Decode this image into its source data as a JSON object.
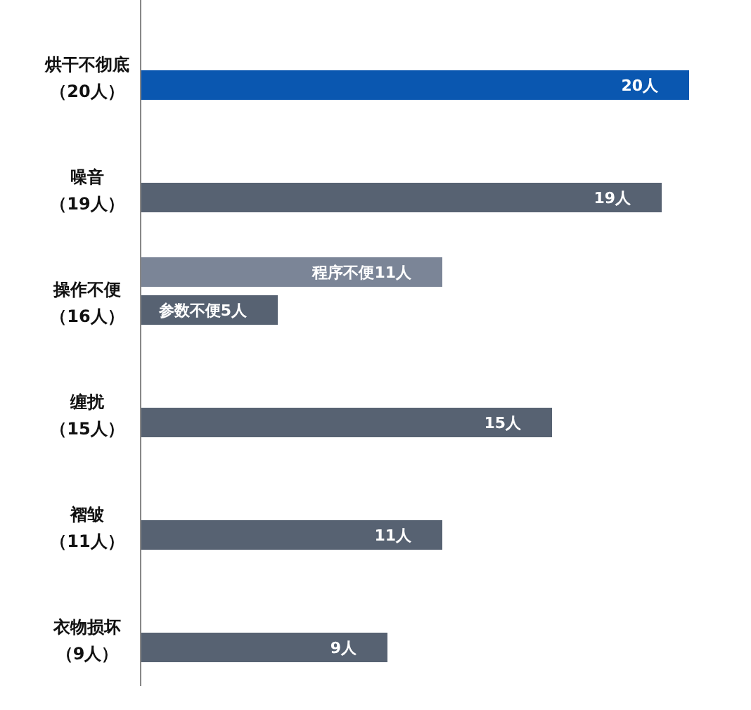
{
  "chart_data": {
    "type": "bar",
    "orientation": "horizontal",
    "categories": [
      "烘干不彻底（20人）",
      "噪音（19人）",
      "操作不便（16人）",
      "缠扰（15人）",
      "褶皱（11人）",
      "衣物损坏（9人）"
    ],
    "series": [
      {
        "color": "#7b8597",
        "values": [
          null,
          null,
          11,
          null,
          null,
          null
        ],
        "value_labels": [
          null,
          null,
          "程序不便11人",
          null,
          null,
          null
        ]
      },
      {
        "colors": [
          "#0a57b0",
          "#576272",
          "#576272",
          "#576272",
          "#576272",
          "#576272"
        ],
        "values": [
          20,
          19,
          5,
          15,
          11,
          9
        ],
        "value_labels": [
          "20人",
          "19人",
          "参数不便5人",
          "15人",
          "11人",
          "9人"
        ]
      }
    ]
  }
}
